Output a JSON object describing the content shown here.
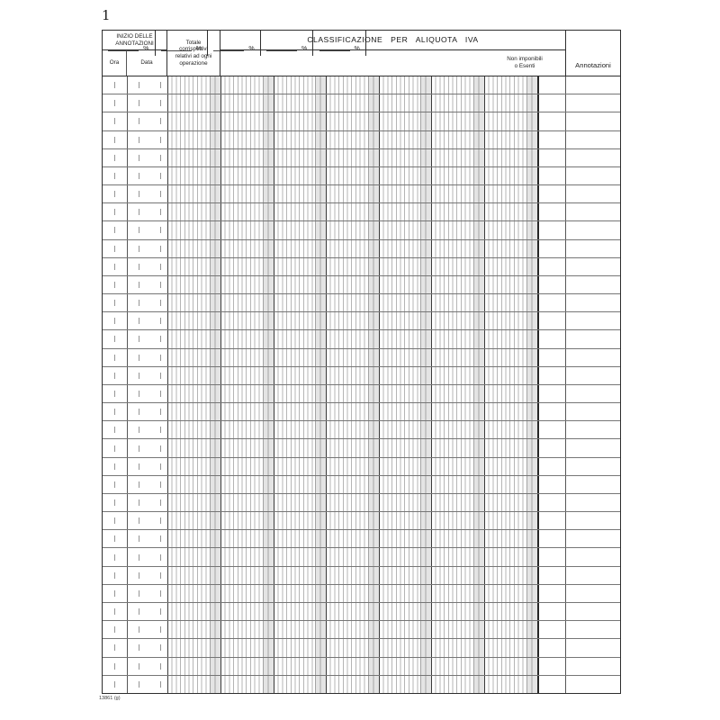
{
  "page": {
    "number": "1",
    "footer_code": "13861 (g)"
  },
  "header": {
    "inizio_line1": "INIZIO DELLE",
    "inizio_line2": "ANNOTAZIONI",
    "ora": "Ora",
    "data": "Data",
    "totale_lines": [
      "Totale",
      "corrispettivi",
      "relativi ad ogni",
      "operazione"
    ],
    "banner": "CLASSIFICAZIONE PER ALIQUOTA IVA",
    "percent_symbol": "%",
    "percent_columns": 5,
    "non_imponibili_line1": "Non imponibili",
    "non_imponibili_line2": "o Esenti",
    "annotazioni": "Annotazioni"
  },
  "table": {
    "rows": 34
  }
}
